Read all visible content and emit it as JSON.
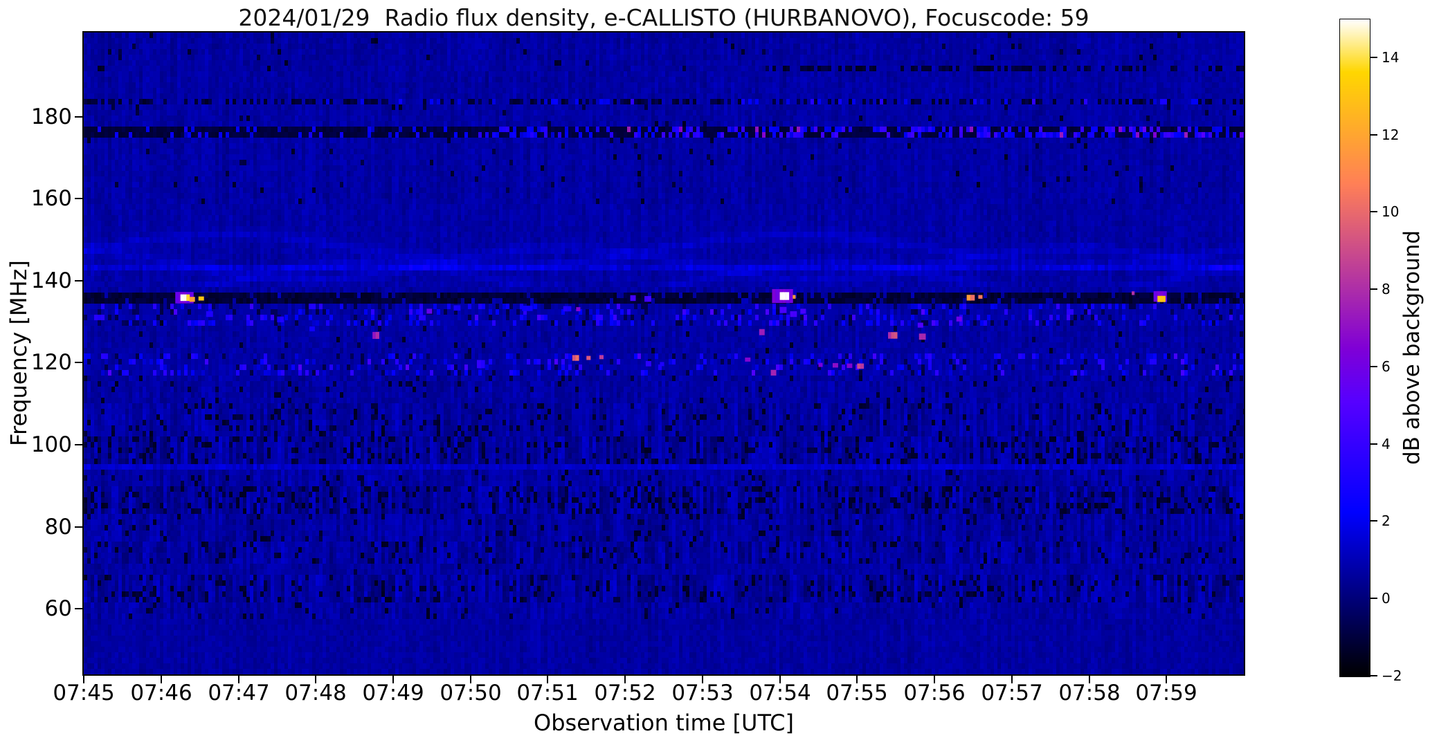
{
  "chart_data": {
    "type": "heatmap",
    "title": "2024/01/29  Radio flux density, e-CALLISTO (HURBANOVO), Focuscode: 59",
    "xlabel": "Observation time [UTC]",
    "ylabel": "Frequency [MHz]",
    "colorbar_label": "dB above background",
    "colormap": "gnuplot2",
    "x_start_utc": "07:45",
    "x_end_utc": "08:00",
    "duration_s": 900,
    "x_ticks": [
      "07:45",
      "07:46",
      "07:47",
      "07:48",
      "07:49",
      "07:50",
      "07:51",
      "07:52",
      "07:53",
      "07:54",
      "07:55",
      "07:56",
      "07:57",
      "07:58",
      "07:59"
    ],
    "y_ticks": [
      "180",
      "160",
      "140",
      "120",
      "100",
      "80",
      "60"
    ],
    "y_range_mhz": [
      44,
      200.6
    ],
    "colorbar_ticks": [
      "14",
      "12",
      "10",
      "8",
      "6",
      "4",
      "2",
      "0",
      "−2"
    ],
    "colorbar_range_db": [
      -2,
      15
    ],
    "background_db": 0.72,
    "grid": false,
    "legend": "colorbar-right",
    "rfi_bands": [
      {
        "f_mhz": 191.4,
        "df": 1.2,
        "kind": "dark-dashes",
        "from_min": 8.8
      },
      {
        "f_mhz": 184.0,
        "df": 1.3,
        "kind": "dark-dashes-with-speckles"
      },
      {
        "f_mhz": 176.2,
        "df": 2.0,
        "kind": "dark-line-bright-speckles"
      },
      {
        "f_mhz": 143.6,
        "df": 1.2,
        "kind": "faint-bright-line"
      },
      {
        "f_mhz": 137.1,
        "df": 1.1,
        "kind": "bright-blue-line-strengthening"
      },
      {
        "f_mhz": 135.3,
        "df": 2.6,
        "kind": "dark-band"
      },
      {
        "f_mhz": 132.0,
        "df": 4.6,
        "kind": "blue-speckles"
      },
      {
        "f_mhz": 119.6,
        "df": 4.4,
        "kind": "blue-speckles"
      },
      {
        "f_mhz": 94.7,
        "df": 1.8,
        "kind": "faint-bright-line"
      }
    ],
    "texture_bands": [
      [
        191.8,
        200.6,
        0.3,
        -0.03,
        0.02
      ],
      [
        159.0,
        183.2,
        0.3,
        0.0,
        0.02
      ],
      [
        138.0,
        159.0,
        0.28,
        0.04,
        0.0
      ],
      [
        123.5,
        129.8,
        0.34,
        0.0,
        0.02
      ],
      [
        121.8,
        123.5,
        0.3,
        0.0,
        0.02
      ],
      [
        115.5,
        117.4,
        0.45,
        -0.02,
        0.08
      ],
      [
        110.5,
        115.5,
        0.4,
        0.0,
        0.04
      ],
      [
        101.5,
        110.5,
        0.7,
        -0.02,
        0.1
      ],
      [
        95.6,
        101.5,
        0.85,
        -0.08,
        0.18
      ],
      [
        90.5,
        93.8,
        0.5,
        0.0,
        0.06
      ],
      [
        83.5,
        90.5,
        0.9,
        -0.05,
        0.17
      ],
      [
        77.0,
        83.5,
        0.55,
        0.0,
        0.06
      ],
      [
        70.5,
        77.0,
        0.7,
        -0.03,
        0.1
      ],
      [
        68.0,
        70.5,
        0.4,
        0.0,
        0.02
      ],
      [
        61.0,
        68.0,
        0.88,
        -0.04,
        0.15
      ],
      [
        58.0,
        61.0,
        0.45,
        0.0,
        0.03
      ],
      [
        44.0,
        58.0,
        0.22,
        -0.04,
        0.0
      ]
    ],
    "bursts": [
      [
        534,
        136.3,
        16,
        3.4,
        6.2
      ],
      [
        71,
        135.9,
        14,
        2.8,
        6.0
      ],
      [
        830,
        136.2,
        10,
        2.6,
        6.0
      ],
      [
        75,
        135.9,
        7,
        1.6,
        15.0
      ],
      [
        82,
        135.5,
        4,
        1.2,
        12.5
      ],
      [
        89,
        135.7,
        4,
        1.0,
        12.8
      ],
      [
        424,
        135.8,
        4,
        1.4,
        4.6
      ],
      [
        435,
        135.6,
        5,
        1.4,
        4.4
      ],
      [
        540,
        136.3,
        7,
        1.9,
        15.2
      ],
      [
        550,
        136.1,
        2,
        0.9,
        12.5
      ],
      [
        685,
        135.9,
        6,
        1.4,
        11.0
      ],
      [
        694,
        136.1,
        3,
        0.9,
        10.0
      ],
      [
        813,
        137.0,
        2,
        0.9,
        8.0
      ],
      [
        833,
        135.6,
        6,
        1.5,
        13.2
      ],
      [
        224,
        126.7,
        5,
        1.7,
        7.5
      ],
      [
        379,
        121.2,
        5,
        1.4,
        10.0
      ],
      [
        390,
        121.2,
        3,
        1.0,
        9.3
      ],
      [
        400,
        121.4,
        3,
        1.0,
        8.3
      ],
      [
        305,
        119.7,
        6,
        2.0,
        3.6
      ],
      [
        524,
        127.5,
        4,
        1.5,
        7.0
      ],
      [
        624,
        126.7,
        7,
        1.6,
        8.6
      ],
      [
        648,
        126.4,
        5,
        1.5,
        7.4
      ],
      [
        513,
        120.8,
        4,
        1.0,
        6.4
      ],
      [
        570,
        119.5,
        3,
        1.0,
        6.0
      ],
      [
        581,
        119.4,
        4,
        1.1,
        7.0
      ],
      [
        592,
        119.3,
        4,
        1.1,
        6.4
      ],
      [
        600,
        119.2,
        5,
        1.3,
        8.6
      ],
      [
        533,
        117.6,
        4,
        1.4,
        7.0
      ],
      [
        266,
        132.6,
        4,
        1.2,
        5.4
      ],
      [
        382,
        133.1,
        3,
        1.0,
        6.4
      ],
      [
        287,
        133.4,
        5,
        1.3,
        3.2
      ],
      [
        340,
        133.3,
        8,
        1.3,
        3.0
      ],
      [
        372,
        133.2,
        6,
        1.3,
        3.4
      ],
      [
        540,
        132.9,
        5,
        1.5,
        5.0
      ],
      [
        548,
        131.9,
        5,
        1.4,
        4.6
      ],
      [
        556,
        132.6,
        4,
        1.2,
        5.0
      ],
      [
        677,
        130.7,
        4,
        1.2,
        6.4
      ],
      [
        647,
        129.2,
        4,
        1.2,
        5.2
      ],
      [
        436,
        119.8,
        4,
        1.3,
        3.4
      ],
      [
        447,
        119.7,
        3,
        1.0,
        3.2
      ],
      [
        95,
        131.9,
        5,
        1.4,
        3.3
      ],
      [
        150,
        130.6,
        5,
        1.4,
        3.1
      ],
      [
        260,
        131.0,
        5,
        1.3,
        3.4
      ],
      [
        175,
        128.3,
        4,
        1.2,
        3.0
      ]
    ]
  }
}
